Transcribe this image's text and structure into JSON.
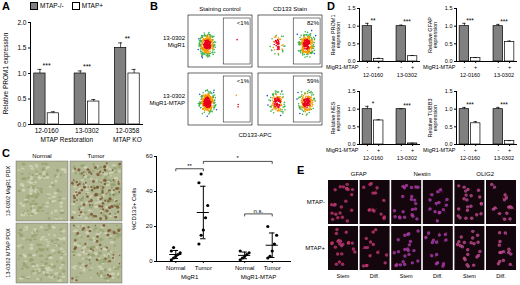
{
  "chart_data": [
    {
      "panel": "A",
      "type": "bar",
      "y_label": "Relative PROM1 expression",
      "categories": [
        "12-0160",
        "13-0302",
        "12-0358"
      ],
      "series": [
        {
          "name": "MTAP-/-",
          "color": "#808080",
          "values": [
            1.0,
            1.0,
            1.5
          ],
          "errors": [
            0.08,
            0.05,
            0.1
          ]
        },
        {
          "name": "MTAP+",
          "color": "#ffffff",
          "values": [
            0.22,
            0.45,
            1.0
          ],
          "errors": [
            0.03,
            0.04,
            0.08
          ]
        }
      ],
      "significance": [
        "***",
        "***",
        "**"
      ],
      "group_labels": [
        {
          "text": "MTAP Restoration",
          "groups": [
            "12-0160",
            "13-0302"
          ]
        },
        {
          "text": "MTAP KO",
          "groups": [
            "12-0358"
          ]
        }
      ],
      "ylim": [
        0,
        2
      ],
      "yticks": [
        {
          "value": 0,
          "label": "0.0"
        },
        0.5,
        {
          "value": 1,
          "label": "1.0"
        },
        1.5,
        {
          "value": 2,
          "label": "2.0"
        }
      ],
      "legend": "top"
    },
    {
      "panel": "D",
      "type": "bar",
      "y_label": "Relative PROM1 expression",
      "x_label_row": "MigR1-MTAP",
      "categories": [
        "12-0160",
        "13-0302"
      ],
      "series": [
        {
          "name": "-",
          "color": "#808080",
          "values": [
            1.0,
            1.0
          ],
          "errors": [
            0.08,
            0.03
          ]
        },
        {
          "name": "+",
          "color": "#ffffff",
          "values": [
            0.07,
            0.15
          ],
          "errors": [
            0.02,
            0.02
          ]
        }
      ],
      "significance": [
        "**",
        "***"
      ],
      "ylim": [
        0,
        1.5
      ],
      "yticks": [
        {
          "value": 0,
          "label": "0.0"
        },
        0.5,
        {
          "value": 1,
          "label": "1.0"
        },
        1.5
      ]
    },
    {
      "type": "bar",
      "y_label": "Relative GFAP expression",
      "x_label_row": "MigR1-MTAP",
      "categories": [
        "12-0160",
        "13-0302"
      ],
      "series": [
        {
          "name": "-",
          "color": "#808080",
          "values": [
            1.0,
            1.0
          ],
          "errors": [
            0.08,
            0.05
          ]
        },
        {
          "name": "+",
          "color": "#ffffff",
          "values": [
            0.1,
            0.55
          ],
          "errors": [
            0.01,
            0.03
          ]
        }
      ],
      "significance": [
        "***",
        "***"
      ],
      "ylim": [
        0,
        1.5
      ],
      "yticks": [
        {
          "value": 0,
          "label": "0.0"
        },
        0.5,
        {
          "value": 1,
          "label": "1.0"
        },
        1.5
      ]
    },
    {
      "type": "bar",
      "y_label": "Relative NES expression",
      "x_label_row": "MigR1-MTAP",
      "categories": [
        "12-0160",
        "13-0302"
      ],
      "series": [
        {
          "name": "-",
          "color": "#808080",
          "values": [
            1.0,
            1.0
          ],
          "errors": [
            0.08,
            0.01
          ]
        },
        {
          "name": "+",
          "color": "#ffffff",
          "values": [
            0.68,
            0.03
          ],
          "errors": [
            0.02,
            0.005
          ]
        }
      ],
      "significance": [
        "*",
        "***"
      ],
      "ylim": [
        0,
        1.5
      ],
      "yticks": [
        {
          "value": 0,
          "label": "0.0"
        },
        0.5,
        {
          "value": 1,
          "label": "1.0"
        },
        1.5
      ]
    },
    {
      "type": "bar",
      "y_label": "Relative TUBB3 expression",
      "x_label_row": "MigR1-MTAP",
      "categories": [
        "12-0160",
        "13-0302"
      ],
      "series": [
        {
          "name": "-",
          "color": "#808080",
          "values": [
            1.0,
            1.0
          ],
          "errors": [
            0.05,
            0.05
          ]
        },
        {
          "name": "+",
          "color": "#ffffff",
          "values": [
            0.6,
            0.1
          ],
          "errors": [
            0.05,
            0.01
          ]
        }
      ],
      "significance": [
        "***",
        "***"
      ],
      "ylim": [
        0,
        1.5
      ],
      "yticks": [
        {
          "value": 0,
          "label": "0.0"
        },
        0.5,
        {
          "value": 1,
          "label": "1.0"
        },
        1.5
      ]
    },
    {
      "type": "scatter",
      "y_label": "%CD133+ Cells",
      "categories": [
        "Normal",
        "Tumor",
        "Normal",
        "Tumor"
      ],
      "groups": [
        "MigR1",
        "MigR1-MTAP"
      ],
      "points": [
        [
          1,
          2,
          3,
          4,
          5,
          6,
          8
        ],
        [
          10,
          15,
          18,
          25,
          32,
          45,
          50
        ],
        [
          1,
          2,
          3,
          4,
          5,
          6
        ],
        [
          2,
          3,
          6,
          10,
          15,
          20
        ]
      ],
      "means": [
        4,
        28,
        3.5,
        9.3
      ],
      "sd": [
        2.3,
        15,
        1.9,
        7
      ],
      "annotations": [
        {
          "text": "**",
          "from": 0,
          "to": 1
        },
        {
          "text": "*",
          "from": 1,
          "to": 3
        },
        {
          "text": "n.s.",
          "from": 2,
          "to": 3
        }
      ],
      "ylim": [
        0,
        60
      ],
      "yticks": [
        0,
        20,
        40,
        60
      ],
      "marker": "circle"
    }
  ],
  "images": {
    "B": {
      "panel": "B",
      "columns": [
        "Staining control",
        "CD133 Stain"
      ],
      "rows": [
        "13-0302 MigR1",
        "13-0302 MigR1-MTAP"
      ],
      "gates": [
        [
          {
            "value": 1,
            "label": "<1%"
          },
          {
            "value": 82,
            "label": "82%"
          }
        ],
        [
          {
            "value": 1,
            "label": "<1%"
          },
          {
            "value": 59,
            "label": "59%"
          }
        ]
      ],
      "x_label": "CD133-APC"
    },
    "C": {
      "panel": "C",
      "columns": [
        "Normal",
        "Tumor"
      ],
      "rows": [
        "13-0302 MigR1 PDX",
        "13-0302 MTAP PDX"
      ]
    },
    "E": {
      "panel": "E",
      "columns": [
        "GFAP",
        "Nestin",
        "OLIG2"
      ],
      "subcolumns": [
        "Stem",
        "Diff."
      ],
      "rows": [
        "MTAP-",
        "MTAP+"
      ]
    }
  }
}
